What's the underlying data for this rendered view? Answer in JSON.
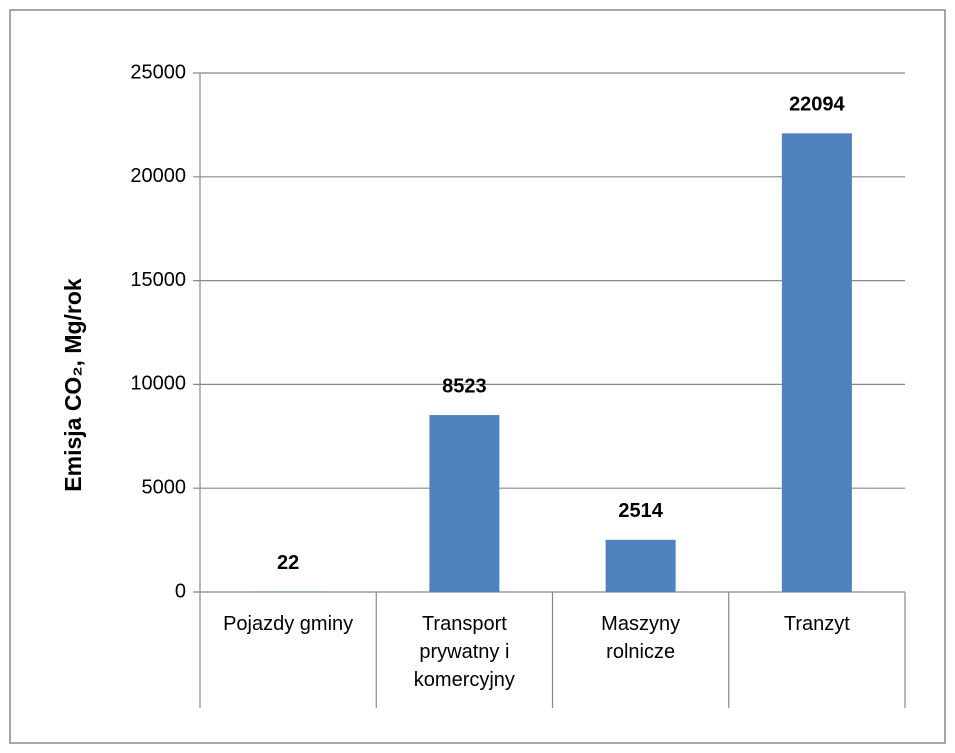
{
  "chart_data": {
    "type": "bar",
    "y_label": "Emisja CO₂, Mg/rok",
    "categories": [
      "Pojazdy gminy",
      "Transport\nprywatny i\nkomercyjny",
      "Maszyny\nrolnicze",
      "Tranzyt"
    ],
    "values": [
      22,
      8523,
      2514,
      22094
    ],
    "color": "#4f81bd",
    "ylim": [
      0,
      25000
    ],
    "yticks": [
      0,
      5000,
      10000,
      15000,
      20000,
      25000
    ],
    "grid": true
  }
}
